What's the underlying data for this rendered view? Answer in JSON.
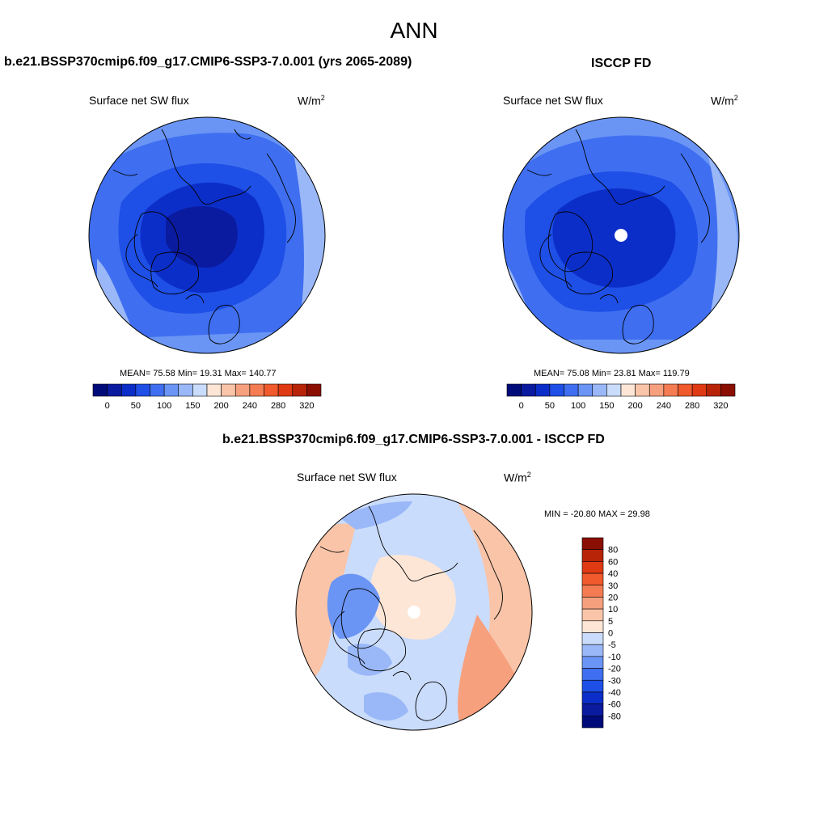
{
  "figure": {
    "title": "ANN"
  },
  "panels": {
    "model": {
      "title": "b.e21.BSSP370cmip6.f09_g17.CMIP6-SSP3-7.0.001 (yrs 2065-2089)",
      "variable": "Surface net SW flux",
      "units": "W/m",
      "units_sup": "2",
      "stats": "MEAN=  75.58  Min=  19.31  Max= 140.77",
      "mean": 75.58,
      "min": 19.31,
      "max": 140.77
    },
    "obs": {
      "title": "ISCCP FD",
      "variable": "Surface net SW flux",
      "units": "W/m",
      "units_sup": "2",
      "stats": "MEAN=  75.08  Min=  23.81  Max= 119.79",
      "mean": 75.08,
      "min": 23.81,
      "max": 119.79
    },
    "diff": {
      "title": "b.e21.BSSP370cmip6.f09_g17.CMIP6-SSP3-7.0.001 - ISCCP FD",
      "variable": "Surface net SW flux",
      "units": "W/m",
      "units_sup": "2",
      "stats": "MIN = -20.80 MAX =  29.98",
      "min": -20.8,
      "max": 29.98
    }
  },
  "colorbars": {
    "abs_colors": [
      "#000b7a",
      "#0a1ba0",
      "#0c2ec8",
      "#1e4fe6",
      "#3f6ff0",
      "#6a95f5",
      "#9ab8f8",
      "#cadcfb",
      "#fde6d6",
      "#f9c4a8",
      "#f7a07e",
      "#f57c52",
      "#f05a2c",
      "#df3a14",
      "#b82408",
      "#8a0f02"
    ],
    "abs_ticks": [
      "0",
      "50",
      "100",
      "150",
      "200",
      "240",
      "280",
      "320"
    ],
    "diff_colors": [
      "#000b7a",
      "#0a1ba0",
      "#0c2ec8",
      "#1e4fe6",
      "#3f6ff0",
      "#6a95f5",
      "#9ab8f8",
      "#cadcfb",
      "#fde6d6",
      "#f9c4a8",
      "#f7a07e",
      "#f57c52",
      "#f05a2c",
      "#df3a14",
      "#b82408",
      "#8a0f02"
    ],
    "diff_ticks": [
      "-80",
      "-60",
      "-40",
      "-30",
      "-20",
      "-10",
      "-5",
      "0",
      "5",
      "10",
      "20",
      "30",
      "40",
      "60",
      "80"
    ]
  }
}
